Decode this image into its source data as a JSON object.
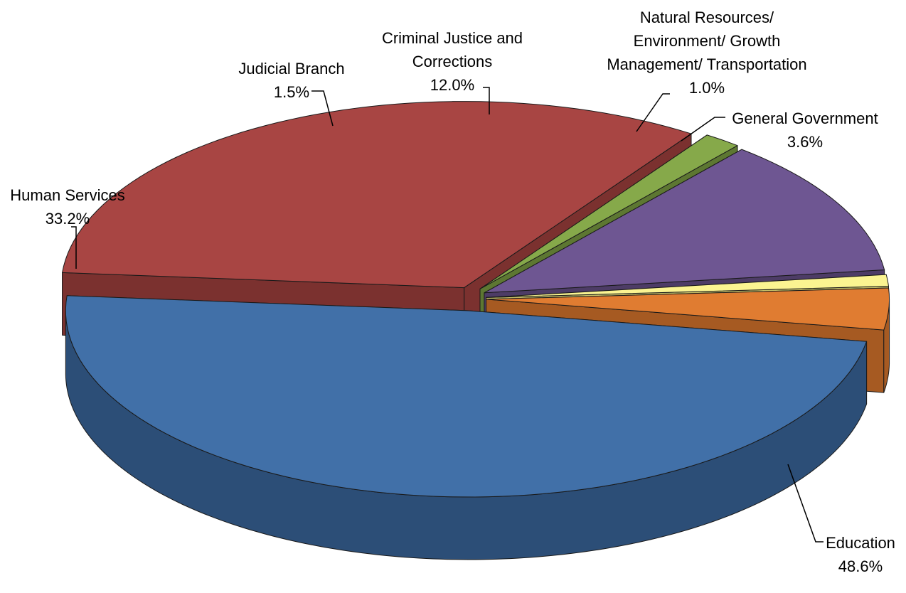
{
  "chart_data": {
    "type": "pie",
    "title": "",
    "style": "3d-exploded",
    "series": [
      {
        "values": [
          48.6,
          33.2,
          1.5,
          12.0,
          1.0,
          3.6
        ]
      }
    ],
    "categories": [
      "Education",
      "Human Services",
      "Judicial Branch",
      "Criminal Justice and Corrections",
      "Natural Resources/ Environment/ Growth Management/ Transportation",
      "General Government"
    ],
    "slices": [
      {
        "label_lines": [
          "Education"
        ],
        "value_label": "48.6%",
        "value": 48.6,
        "color": "#4170a8",
        "side_color": "#2c4e77"
      },
      {
        "label_lines": [
          "Human Services"
        ],
        "value_label": "33.2%",
        "value": 33.2,
        "color": "#a84543",
        "side_color": "#7b312f"
      },
      {
        "label_lines": [
          "Judicial Branch"
        ],
        "value_label": "1.5%",
        "value": 1.5,
        "color": "#86a94a",
        "side_color": "#5d7732"
      },
      {
        "label_lines": [
          "Criminal Justice and",
          "Corrections"
        ],
        "value_label": "12.0%",
        "value": 12.0,
        "color": "#6e5692",
        "side_color": "#4d3c66"
      },
      {
        "label_lines": [
          "Natural Resources/",
          "Environment/ Growth",
          "Management/ Transportation"
        ],
        "value_label": "1.0%",
        "value": 1.0,
        "color": "#fbf491",
        "side_color": "#c9c36a"
      },
      {
        "label_lines": [
          "General Government"
        ],
        "value_label": "3.6%",
        "value": 3.6,
        "color": "#e07c31",
        "side_color": "#a65a22"
      }
    ],
    "legend": "none",
    "data_labels": "outside-with-leader-lines"
  }
}
